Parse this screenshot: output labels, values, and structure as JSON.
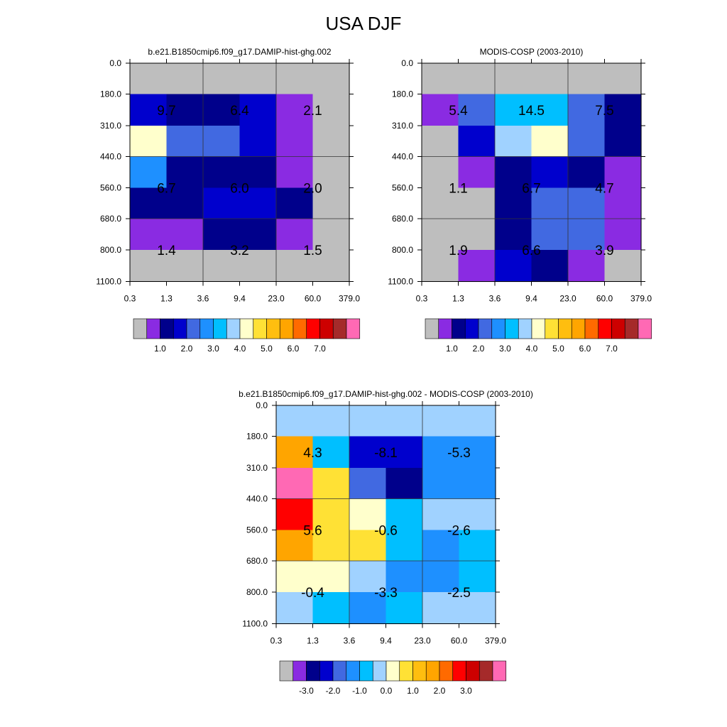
{
  "figure": {
    "title": "USA DJF"
  },
  "chart_data": [
    {
      "type": "heatmap",
      "title": "b.e21.B1850cmip6.f09_g17.DAMIP-hist-ghg.002",
      "x_ticks": [
        "0.3",
        "1.3",
        "3.6",
        "9.4",
        "23.0",
        "60.0",
        "379.0"
      ],
      "y_ticks": [
        "0.0",
        "180.0",
        "310.0",
        "440.0",
        "560.0",
        "680.0",
        "800.0",
        "1100.0"
      ],
      "cell_colors": [
        [
          "#bebebe",
          "#bebebe",
          "#bebebe",
          "#bebebe",
          "#bebebe",
          "#bebebe"
        ],
        [
          "#0000cd",
          "#00008b",
          "#00008b",
          "#0000cd",
          "#8a2be2",
          "#bebebe"
        ],
        [
          "#ffffcc",
          "#4169e1",
          "#4169e1",
          "#0000cd",
          "#8a2be2",
          "#bebebe"
        ],
        [
          "#1e90ff",
          "#00008b",
          "#00008b",
          "#00008b",
          "#8a2be2",
          "#bebebe"
        ],
        [
          "#00008b",
          "#00008b",
          "#0000cd",
          "#0000cd",
          "#00008b",
          "#bebebe"
        ],
        [
          "#8a2be2",
          "#8a2be2",
          "#00008b",
          "#00008b",
          "#8a2be2",
          "#bebebe"
        ],
        [
          "#bebebe",
          "#bebebe",
          "#bebebe",
          "#bebebe",
          "#bebebe",
          "#bebebe"
        ]
      ],
      "annotations": [
        {
          "x_index": 1,
          "y_index": 1.5,
          "text": "9.7"
        },
        {
          "x_index": 3,
          "y_index": 1.5,
          "text": "6.4"
        },
        {
          "x_index": 5,
          "y_index": 1.5,
          "text": "2.1"
        },
        {
          "x_index": 1,
          "y_index": 4,
          "text": "6.7"
        },
        {
          "x_index": 3,
          "y_index": 4,
          "text": "6.0"
        },
        {
          "x_index": 5,
          "y_index": 4,
          "text": "2.0"
        },
        {
          "x_index": 1,
          "y_index": 6,
          "text": "1.4"
        },
        {
          "x_index": 3,
          "y_index": 6,
          "text": "3.2"
        },
        {
          "x_index": 5,
          "y_index": 6,
          "text": "1.5"
        }
      ],
      "colorbar": {
        "colors": [
          "#bebebe",
          "#8a2be2",
          "#00008b",
          "#0000cd",
          "#4169e1",
          "#1e90ff",
          "#00bfff",
          "#a0d2ff",
          "#ffffcc",
          "#ffe135",
          "#ffbe0f",
          "#ffa500",
          "#ff6a00",
          "#ff0000",
          "#cd0000",
          "#a52a2a",
          "#ff69b4"
        ],
        "labels": [
          "1.0",
          "2.0",
          "3.0",
          "4.0",
          "5.0",
          "6.0",
          "7.0"
        ]
      }
    },
    {
      "type": "heatmap",
      "title": "MODIS-COSP (2003-2010)",
      "x_ticks": [
        "0.3",
        "1.3",
        "3.6",
        "9.4",
        "23.0",
        "60.0",
        "379.0"
      ],
      "y_ticks": [
        "0.0",
        "180.0",
        "310.0",
        "440.0",
        "560.0",
        "680.0",
        "800.0",
        "1100.0"
      ],
      "cell_colors": [
        [
          "#bebebe",
          "#bebebe",
          "#bebebe",
          "#bebebe",
          "#bebebe",
          "#bebebe"
        ],
        [
          "#8a2be2",
          "#4169e1",
          "#00bfff",
          "#00bfff",
          "#4169e1",
          "#00008b"
        ],
        [
          "#bebebe",
          "#0000cd",
          "#a0d2ff",
          "#ffffcc",
          "#4169e1",
          "#00008b"
        ],
        [
          "#bebebe",
          "#8a2be2",
          "#00008b",
          "#0000cd",
          "#00008b",
          "#8a2be2"
        ],
        [
          "#bebebe",
          "#bebebe",
          "#00008b",
          "#4169e1",
          "#4169e1",
          "#8a2be2"
        ],
        [
          "#bebebe",
          "#bebebe",
          "#00008b",
          "#4169e1",
          "#4169e1",
          "#8a2be2"
        ],
        [
          "#bebebe",
          "#8a2be2",
          "#0000cd",
          "#00008b",
          "#8a2be2",
          "#bebebe"
        ]
      ],
      "annotations": [
        {
          "x_index": 1,
          "y_index": 1.5,
          "text": "5.4"
        },
        {
          "x_index": 3,
          "y_index": 1.5,
          "text": "14.5"
        },
        {
          "x_index": 5,
          "y_index": 1.5,
          "text": "7.5"
        },
        {
          "x_index": 1,
          "y_index": 4,
          "text": "1.1"
        },
        {
          "x_index": 3,
          "y_index": 4,
          "text": "6.7"
        },
        {
          "x_index": 5,
          "y_index": 4,
          "text": "4.7"
        },
        {
          "x_index": 1,
          "y_index": 6,
          "text": "1.9"
        },
        {
          "x_index": 3,
          "y_index": 6,
          "text": "6.6"
        },
        {
          "x_index": 5,
          "y_index": 6,
          "text": "3.9"
        }
      ],
      "colorbar": {
        "colors": [
          "#bebebe",
          "#8a2be2",
          "#00008b",
          "#0000cd",
          "#4169e1",
          "#1e90ff",
          "#00bfff",
          "#a0d2ff",
          "#ffffcc",
          "#ffe135",
          "#ffbe0f",
          "#ffa500",
          "#ff6a00",
          "#ff0000",
          "#cd0000",
          "#a52a2a",
          "#ff69b4"
        ],
        "labels": [
          "1.0",
          "2.0",
          "3.0",
          "4.0",
          "5.0",
          "6.0",
          "7.0"
        ]
      }
    },
    {
      "type": "heatmap",
      "title": "b.e21.B1850cmip6.f09_g17.DAMIP-hist-ghg.002 - MODIS-COSP (2003-2010)",
      "x_ticks": [
        "0.3",
        "1.3",
        "3.6",
        "9.4",
        "23.0",
        "60.0",
        "379.0"
      ],
      "y_ticks": [
        "0.0",
        "180.0",
        "310.0",
        "440.0",
        "560.0",
        "680.0",
        "800.0",
        "1100.0"
      ],
      "cell_colors": [
        [
          "#a0d2ff",
          "#a0d2ff",
          "#a0d2ff",
          "#a0d2ff",
          "#a0d2ff",
          "#a0d2ff"
        ],
        [
          "#ffa500",
          "#00bfff",
          "#0000cd",
          "#0000cd",
          "#1e90ff",
          "#1e90ff"
        ],
        [
          "#ff69b4",
          "#ffe135",
          "#4169e1",
          "#00008b",
          "#1e90ff",
          "#1e90ff"
        ],
        [
          "#ff0000",
          "#ffe135",
          "#ffffcc",
          "#00bfff",
          "#a0d2ff",
          "#a0d2ff"
        ],
        [
          "#ffa500",
          "#ffe135",
          "#ffe135",
          "#00bfff",
          "#1e90ff",
          "#00bfff"
        ],
        [
          "#ffffcc",
          "#ffffcc",
          "#a0d2ff",
          "#1e90ff",
          "#1e90ff",
          "#00bfff"
        ],
        [
          "#a0d2ff",
          "#00bfff",
          "#1e90ff",
          "#00bfff",
          "#a0d2ff",
          "#a0d2ff"
        ]
      ],
      "annotations": [
        {
          "x_index": 1,
          "y_index": 1.5,
          "text": "4.3"
        },
        {
          "x_index": 3,
          "y_index": 1.5,
          "text": "-8.1"
        },
        {
          "x_index": 5,
          "y_index": 1.5,
          "text": "-5.3"
        },
        {
          "x_index": 1,
          "y_index": 4,
          "text": "5.6"
        },
        {
          "x_index": 3,
          "y_index": 4,
          "text": "-0.6"
        },
        {
          "x_index": 5,
          "y_index": 4,
          "text": "-2.6"
        },
        {
          "x_index": 1,
          "y_index": 6,
          "text": "-0.4"
        },
        {
          "x_index": 3,
          "y_index": 6,
          "text": "-3.3"
        },
        {
          "x_index": 5,
          "y_index": 6,
          "text": "-2.5"
        }
      ],
      "colorbar": {
        "colors": [
          "#bebebe",
          "#8a2be2",
          "#00008b",
          "#0000cd",
          "#4169e1",
          "#1e90ff",
          "#00bfff",
          "#a0d2ff",
          "#ffffcc",
          "#ffe135",
          "#ffbe0f",
          "#ffa500",
          "#ff6a00",
          "#ff0000",
          "#cd0000",
          "#a52a2a",
          "#ff69b4"
        ],
        "labels": [
          "-3.0",
          "-2.0",
          "-1.0",
          "0.0",
          "1.0",
          "2.0",
          "3.0"
        ]
      }
    }
  ]
}
